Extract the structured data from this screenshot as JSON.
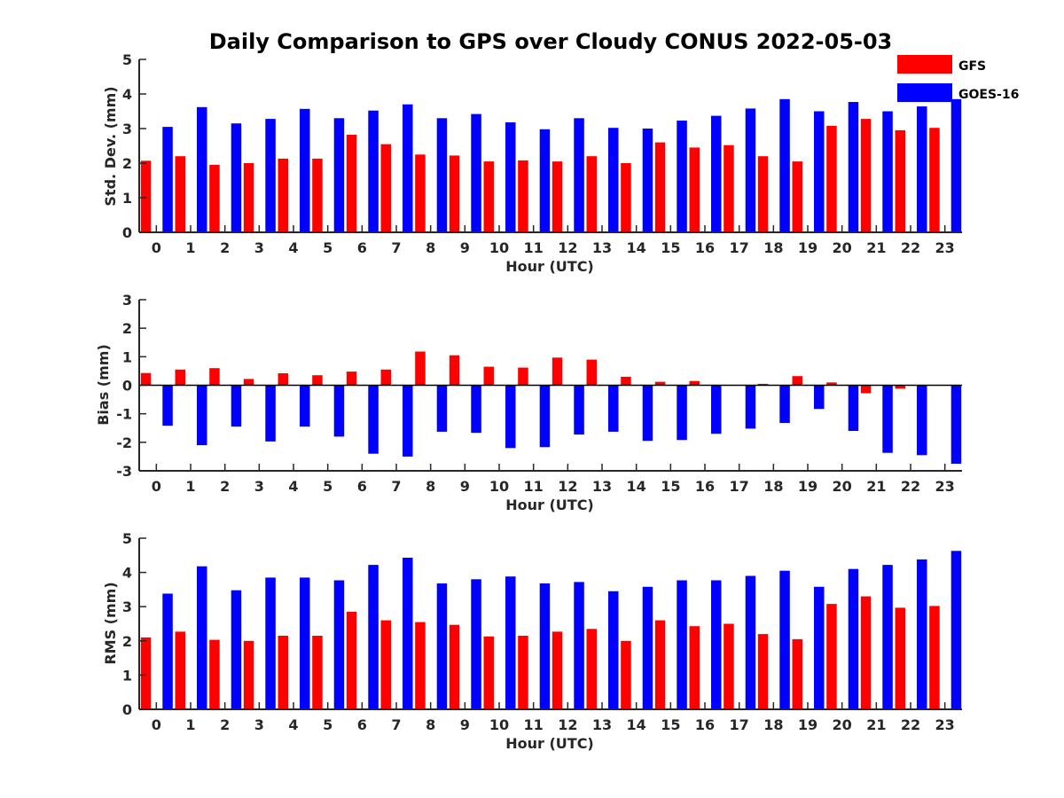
{
  "title": "Daily Comparison to GPS over Cloudy CONUS 2022-05-03",
  "legend": {
    "placement": "top-right",
    "items": [
      {
        "name": "GFS",
        "color": "#ff0000"
      },
      {
        "name": "GOES-16",
        "color": "#0000ff"
      }
    ]
  },
  "chart_data": [
    {
      "type": "bar",
      "categories": [
        "0",
        "1",
        "2",
        "3",
        "4",
        "5",
        "6",
        "7",
        "8",
        "9",
        "10",
        "11",
        "12",
        "13",
        "14",
        "15",
        "16",
        "17",
        "18",
        "19",
        "20",
        "21",
        "22",
        "23"
      ],
      "xlabel": "Hour (UTC)",
      "ylabel": "Std. Dev. (mm)",
      "ylim": [
        0,
        5
      ],
      "yticks": [
        0,
        1,
        2,
        3,
        4,
        5
      ],
      "series": [
        {
          "name": "GFS",
          "color": "#ff0000",
          "values": [
            2.07,
            2.2,
            1.95,
            2.0,
            2.13,
            2.13,
            2.82,
            2.55,
            2.25,
            2.22,
            2.05,
            2.08,
            2.05,
            2.2,
            2.0,
            2.6,
            2.45,
            2.52,
            2.2,
            2.05,
            3.08,
            3.28,
            2.95,
            3.02
          ]
        },
        {
          "name": "GOES-16",
          "color": "#0000ff",
          "values": [
            3.05,
            3.62,
            3.15,
            3.28,
            3.57,
            3.3,
            3.52,
            3.7,
            3.3,
            3.42,
            3.18,
            2.98,
            3.3,
            3.02,
            3.0,
            3.23,
            3.37,
            3.58,
            3.85,
            3.5,
            3.77,
            3.5,
            3.64,
            3.85
          ]
        }
      ]
    },
    {
      "type": "bar",
      "categories": [
        "0",
        "1",
        "2",
        "3",
        "4",
        "5",
        "6",
        "7",
        "8",
        "9",
        "10",
        "11",
        "12",
        "13",
        "14",
        "15",
        "16",
        "17",
        "18",
        "19",
        "20",
        "21",
        "22",
        "23"
      ],
      "xlabel": "Hour (UTC)",
      "ylabel": "Bias (mm)",
      "ylim": [
        -3,
        3
      ],
      "yticks": [
        -3,
        -2,
        -1,
        0,
        1,
        2,
        3
      ],
      "series": [
        {
          "name": "GFS",
          "color": "#ff0000",
          "values": [
            0.43,
            0.55,
            0.6,
            0.22,
            0.42,
            0.35,
            0.48,
            0.55,
            1.18,
            1.05,
            0.65,
            0.62,
            0.97,
            0.9,
            0.3,
            0.12,
            0.15,
            0.0,
            0.05,
            0.32,
            0.1,
            -0.28,
            -0.12,
            0.0
          ]
        },
        {
          "name": "GOES-16",
          "color": "#0000ff",
          "values": [
            -1.42,
            -2.1,
            -1.45,
            -1.97,
            -1.45,
            -1.8,
            -2.4,
            -2.5,
            -1.63,
            -1.67,
            -2.2,
            -2.17,
            -1.73,
            -1.63,
            -1.95,
            -1.92,
            -1.7,
            -1.52,
            -1.32,
            -0.83,
            -1.6,
            -2.37,
            -2.45,
            -2.75
          ]
        }
      ]
    },
    {
      "type": "bar",
      "categories": [
        "0",
        "1",
        "2",
        "3",
        "4",
        "5",
        "6",
        "7",
        "8",
        "9",
        "10",
        "11",
        "12",
        "13",
        "14",
        "15",
        "16",
        "17",
        "18",
        "19",
        "20",
        "21",
        "22",
        "23"
      ],
      "xlabel": "Hour (UTC)",
      "ylabel": "RMS (mm)",
      "ylim": [
        0,
        5
      ],
      "yticks": [
        0,
        1,
        2,
        3,
        4,
        5
      ],
      "series": [
        {
          "name": "GFS",
          "color": "#ff0000",
          "values": [
            2.1,
            2.27,
            2.03,
            2.0,
            2.15,
            2.15,
            2.85,
            2.6,
            2.55,
            2.47,
            2.13,
            2.15,
            2.27,
            2.35,
            2.0,
            2.6,
            2.43,
            2.5,
            2.2,
            2.05,
            3.08,
            3.3,
            2.97,
            3.02
          ]
        },
        {
          "name": "GOES-16",
          "color": "#0000ff",
          "values": [
            3.38,
            4.18,
            3.48,
            3.85,
            3.85,
            3.77,
            4.22,
            4.43,
            3.68,
            3.8,
            3.88,
            3.68,
            3.72,
            3.45,
            3.58,
            3.77,
            3.77,
            3.9,
            4.05,
            3.58,
            4.1,
            4.22,
            4.38,
            4.63
          ]
        }
      ]
    }
  ]
}
